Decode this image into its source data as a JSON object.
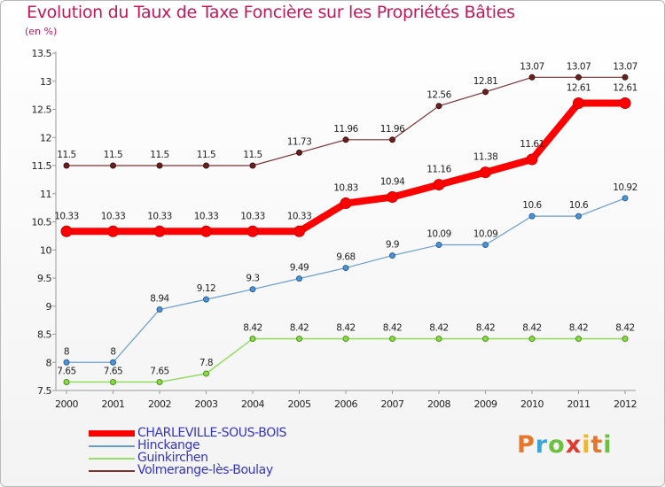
{
  "title": "Evolution du Taux de Taxe Foncière sur les Propriétés Bâties",
  "subtitle": "(en %)",
  "logo": {
    "letters": [
      "P",
      "r",
      "o",
      "x",
      "i",
      "t",
      "i"
    ],
    "colors": [
      "#e6762b",
      "#3ea3dc",
      "#6cbf3f",
      "#e23a2e",
      "#f2b62c",
      "#e6762b",
      "#6cbf3f"
    ]
  },
  "chart_data": {
    "type": "line",
    "title": "Evolution du Taux de Taxe Foncière sur les Propriétés Bâties",
    "ylabel": "(en %)",
    "xlabel": "",
    "categories": [
      "2000",
      "2001",
      "2002",
      "2003",
      "2004",
      "2005",
      "2006",
      "2007",
      "2008",
      "2009",
      "2010",
      "2011",
      "2012"
    ],
    "ylim": [
      7.5,
      13.5
    ],
    "yticks": [
      "7.5",
      "8",
      "8.5",
      "9",
      "9.5",
      "10",
      "10.5",
      "11",
      "11.5",
      "12",
      "12.5",
      "13",
      "13.5"
    ],
    "grid": false,
    "series": [
      {
        "name": "CHARLEVILLE-SOUS-BOIS",
        "color": "#ff0000",
        "values": [
          10.33,
          10.33,
          10.33,
          10.33,
          10.33,
          10.33,
          10.83,
          10.94,
          11.16,
          11.38,
          11.61,
          12.61,
          12.61
        ],
        "labels": [
          "10.33",
          "10.33",
          "10.33",
          "10.33",
          "10.33",
          "10.33",
          "10.83",
          "10.94",
          "11.16",
          "11.38",
          "11.61",
          "12.61",
          "12.61"
        ]
      },
      {
        "name": "Hinckange",
        "color": "#6a9ccd",
        "values": [
          8,
          8,
          8.94,
          9.12,
          9.3,
          9.49,
          9.68,
          9.9,
          10.09,
          10.09,
          10.6,
          10.6,
          10.92
        ],
        "labels": [
          "8",
          "8",
          "8.94",
          "9.12",
          "9.3",
          "9.49",
          "9.68",
          "9.9",
          "10.09",
          "10.09",
          "10.6",
          "10.6",
          "10.92"
        ]
      },
      {
        "name": "Guinkirchen",
        "color": "#99dd66",
        "values": [
          7.65,
          7.65,
          7.65,
          7.8,
          8.42,
          8.42,
          8.42,
          8.42,
          8.42,
          8.42,
          8.42,
          8.42,
          8.42
        ],
        "labels": [
          "7.65",
          "7.65",
          "7.65",
          "7.8",
          "8.42",
          "8.42",
          "8.42",
          "8.42",
          "8.42",
          "8.42",
          "8.42",
          "8.42",
          "8.42"
        ]
      },
      {
        "name": "Volmerange-lès-Boulay",
        "color": "#7a3333",
        "values": [
          11.5,
          11.5,
          11.5,
          11.5,
          11.5,
          11.73,
          11.96,
          11.96,
          12.56,
          12.81,
          13.07,
          13.07,
          13.07
        ],
        "labels": [
          "11.5",
          "11.5",
          "11.5",
          "11.5",
          "11.5",
          "11.73",
          "11.96",
          "11.96",
          "12.56",
          "12.81",
          "13.07",
          "13.07",
          "13.07"
        ]
      }
    ]
  }
}
